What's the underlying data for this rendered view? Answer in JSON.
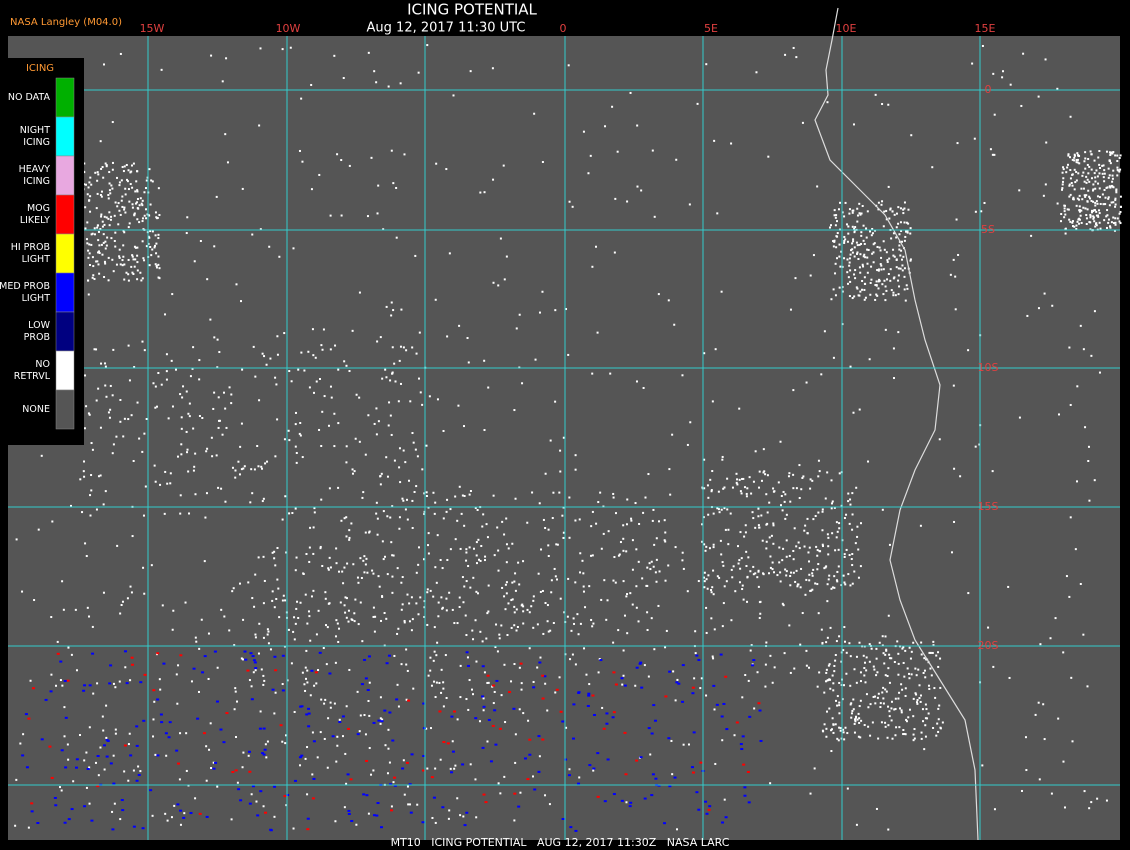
{
  "header": {
    "logo": "NASA Langley (M04.0)",
    "title": "ICING POTENTIAL",
    "subtitle": "Aug 12, 2017 11:30 UTC"
  },
  "map": {
    "lon_labels": [
      "15W",
      "10W",
      "0",
      "5E",
      "10E",
      "15E"
    ],
    "lat_labels": [
      "0",
      "5S",
      "10S",
      "15S",
      "20S"
    ]
  },
  "legend": {
    "title": "ICING",
    "items": [
      {
        "label": [
          "NO DATA"
        ],
        "color": "#00b000"
      },
      {
        "label": [
          "NIGHT",
          "ICING"
        ],
        "color": "#00ffff"
      },
      {
        "label": [
          "HEAVY",
          "ICING"
        ],
        "color": "#e8a8e0"
      },
      {
        "label": [
          "MOG",
          "LIKELY"
        ],
        "color": "#ff0000"
      },
      {
        "label": [
          "HI PROB",
          "LIGHT"
        ],
        "color": "#ffff00"
      },
      {
        "label": [
          "MED PROB",
          "LIGHT"
        ],
        "color": "#0000ff"
      },
      {
        "label": [
          "LOW",
          "PROB"
        ],
        "color": "#000080"
      },
      {
        "label": [
          "NO",
          "RETRVL"
        ],
        "color": "#ffffff"
      },
      {
        "label": [
          "NONE"
        ],
        "color": "#555555"
      }
    ]
  },
  "footer": {
    "text": "MT10   ICING POTENTIAL   AUG 12, 2017 11:30Z   NASA LARC"
  }
}
